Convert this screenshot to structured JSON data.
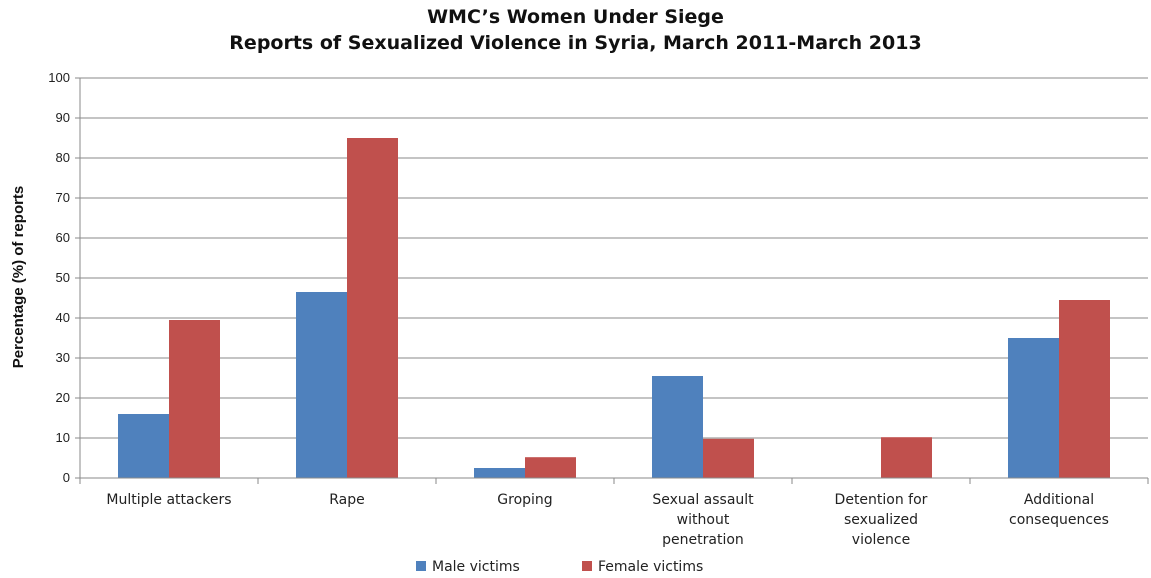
{
  "chart_data": {
    "type": "bar",
    "title": "WMC’s Women Under Siege",
    "subtitle": "Reports of Sexualized Violence in Syria, March 2011-March 2013",
    "xlabel": "",
    "ylabel": "Percentage (%) of reports",
    "ylim": [
      0,
      100
    ],
    "yticks": [
      0,
      10,
      20,
      30,
      40,
      50,
      60,
      70,
      80,
      90,
      100
    ],
    "grid": true,
    "legend_position": "bottom",
    "categories": [
      [
        "Multiple attackers"
      ],
      [
        "Rape"
      ],
      [
        "Groping"
      ],
      [
        "Sexual assault",
        "without",
        "penetration"
      ],
      [
        "Detention for",
        "sexualized",
        "violence"
      ],
      [
        "Additional",
        "consequences"
      ]
    ],
    "series": [
      {
        "name": "Male victims",
        "color": "#4f81bd",
        "values": [
          16,
          46.5,
          2.5,
          25.5,
          0,
          35
        ]
      },
      {
        "name": "Female victims",
        "color": "#c0504d",
        "values": [
          39.5,
          85,
          5.2,
          9.8,
          10.2,
          44.5
        ]
      }
    ]
  }
}
